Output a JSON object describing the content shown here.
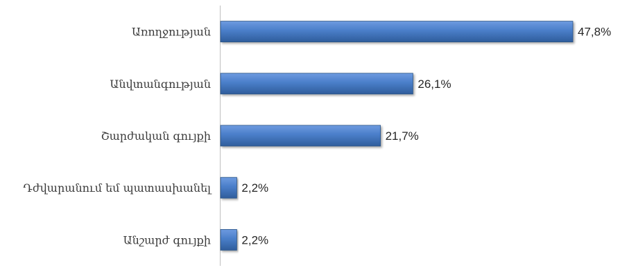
{
  "chart_data": {
    "type": "bar",
    "orientation": "horizontal",
    "categories": [
      "Առողջության",
      "Անվտանգության",
      "Շարժական գույքի",
      "Դժվարանում եմ պատասխանել",
      "Անշարժ գույքի"
    ],
    "values": [
      47.8,
      26.1,
      21.7,
      2.2,
      2.2
    ],
    "value_labels": [
      "47,8%",
      "26,1%",
      "21,7%",
      "2,2%",
      "2,2%"
    ],
    "unit": "%",
    "xlim": [
      0,
      50
    ],
    "grid": false,
    "legend": "none",
    "colors": {
      "bar_top": "#6e9be0",
      "bar_mid": "#4a7ec9",
      "bar_bottom": "#2f5d9c",
      "bar_edge": "#2b5486",
      "axis": "#bfbfbf"
    }
  }
}
